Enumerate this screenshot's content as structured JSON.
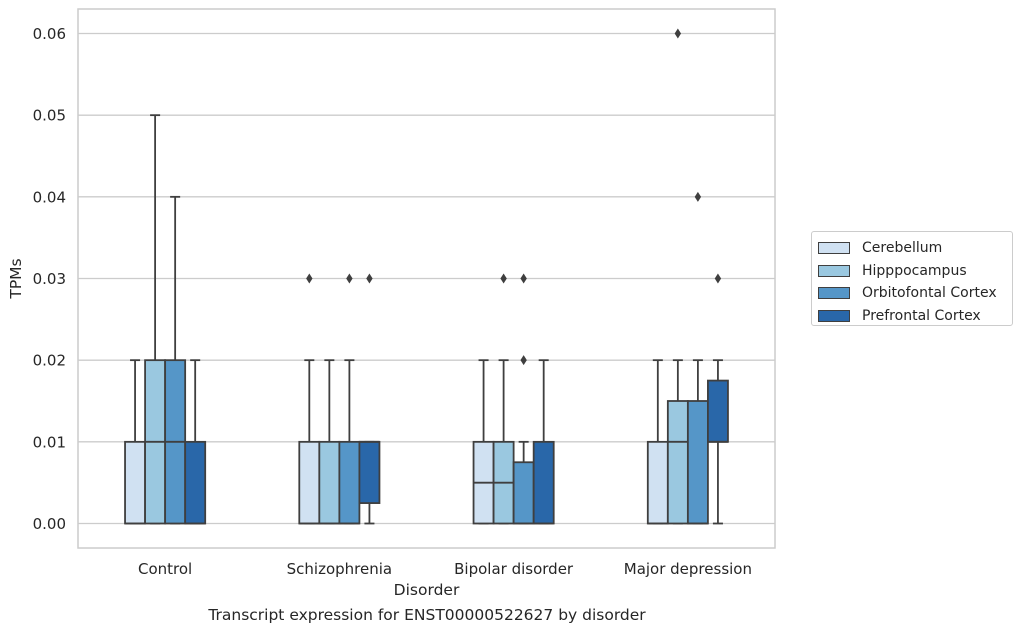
{
  "figure": {
    "caption": "Transcript expression for ENST00000522627 by disorder"
  },
  "chart_data": {
    "type": "box",
    "xlabel": "Disorder",
    "ylabel": "TPMs",
    "ylim": [
      -0.003,
      0.063
    ],
    "yticks": [
      0.0,
      0.01,
      0.02,
      0.03,
      0.04,
      0.05,
      0.06
    ],
    "ytick_labels": [
      "0.00",
      "0.01",
      "0.02",
      "0.03",
      "0.04",
      "0.05",
      "0.06"
    ],
    "grid": true,
    "legend_position": "right",
    "categories": [
      "Control",
      "Schizophrenia",
      "Bipolar disorder",
      "Major depression"
    ],
    "series": [
      {
        "name": "Cerebellum",
        "color": "#d0e1f2",
        "boxes": [
          {
            "whislo": 0.0,
            "q1": 0.0,
            "med": 0.0,
            "q3": 0.01,
            "whishi": 0.02,
            "fliers": []
          },
          {
            "whislo": 0.0,
            "q1": 0.0,
            "med": 0.0,
            "q3": 0.01,
            "whishi": 0.02,
            "fliers": [
              0.03
            ]
          },
          {
            "whislo": 0.0,
            "q1": 0.0,
            "med": 0.005,
            "q3": 0.01,
            "whishi": 0.02,
            "fliers": []
          },
          {
            "whislo": 0.0,
            "q1": 0.0,
            "med": 0.0,
            "q3": 0.01,
            "whishi": 0.02,
            "fliers": []
          }
        ]
      },
      {
        "name": "Hipppocampus",
        "color": "#9ac8e0",
        "boxes": [
          {
            "whislo": 0.0,
            "q1": 0.0,
            "med": 0.01,
            "q3": 0.02,
            "whishi": 0.05,
            "fliers": []
          },
          {
            "whislo": 0.0,
            "q1": 0.0,
            "med": 0.0,
            "q3": 0.01,
            "whishi": 0.02,
            "fliers": []
          },
          {
            "whislo": 0.0,
            "q1": 0.0,
            "med": 0.005,
            "q3": 0.01,
            "whishi": 0.02,
            "fliers": [
              0.03
            ]
          },
          {
            "whislo": 0.0,
            "q1": 0.0,
            "med": 0.01,
            "q3": 0.015,
            "whishi": 0.02,
            "fliers": [
              0.06
            ]
          }
        ]
      },
      {
        "name": "Orbitofontal Cortex",
        "color": "#5596c8",
        "boxes": [
          {
            "whislo": 0.0,
            "q1": 0.0,
            "med": 0.01,
            "q3": 0.02,
            "whishi": 0.04,
            "fliers": []
          },
          {
            "whislo": 0.0,
            "q1": 0.0,
            "med": 0.0,
            "q3": 0.01,
            "whishi": 0.02,
            "fliers": [
              0.03
            ]
          },
          {
            "whislo": 0.0,
            "q1": 0.0,
            "med": 0.0,
            "q3": 0.0075,
            "whishi": 0.01,
            "fliers": [
              0.02,
              0.03
            ]
          },
          {
            "whislo": 0.0,
            "q1": 0.0,
            "med": 0.0,
            "q3": 0.015,
            "whishi": 0.02,
            "fliers": [
              0.04
            ]
          }
        ]
      },
      {
        "name": "Prefrontal Cortex",
        "color": "#2967a9",
        "boxes": [
          {
            "whislo": 0.0,
            "q1": 0.0,
            "med": 0.0,
            "q3": 0.01,
            "whishi": 0.02,
            "fliers": []
          },
          {
            "whislo": 0.0,
            "q1": 0.0025,
            "med": 0.01,
            "q3": 0.01,
            "whishi": 0.01,
            "fliers": [
              0.03
            ]
          },
          {
            "whislo": 0.0,
            "q1": 0.0,
            "med": 0.0,
            "q3": 0.01,
            "whishi": 0.02,
            "fliers": []
          },
          {
            "whislo": 0.0,
            "q1": 0.01,
            "med": 0.01,
            "q3": 0.0175,
            "whishi": 0.02,
            "fliers": [
              0.03
            ]
          }
        ]
      }
    ]
  }
}
